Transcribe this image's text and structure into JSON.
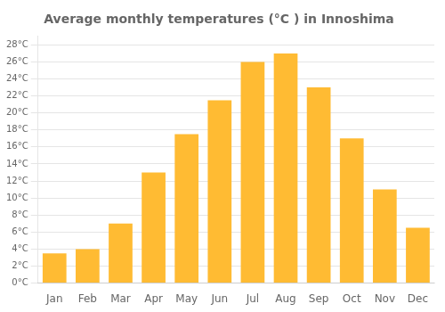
{
  "chart_data": {
    "type": "bar",
    "title": "Average monthly temperatures (°C ) in Innoshima",
    "categories": [
      "Jan",
      "Feb",
      "Mar",
      "Apr",
      "May",
      "Jun",
      "Jul",
      "Aug",
      "Sep",
      "Oct",
      "Nov",
      "Dec"
    ],
    "values": [
      3.5,
      4.0,
      7.0,
      13.0,
      17.5,
      21.5,
      26.0,
      27.0,
      23.0,
      17.0,
      11.0,
      6.5
    ],
    "color": "#FFBB33",
    "ylim": [
      0,
      29
    ],
    "yticks": [
      {
        "value": 0,
        "label": "0°C"
      },
      {
        "value": 2,
        "label": "2°C"
      },
      {
        "value": 4,
        "label": "4°C"
      },
      {
        "value": 6,
        "label": "6°C"
      },
      {
        "value": 8,
        "label": "8°C"
      },
      {
        "value": 10,
        "label": "10°C"
      },
      {
        "value": 12,
        "label": "12°C"
      },
      {
        "value": 14,
        "label": "14°C"
      },
      {
        "value": 16,
        "label": "16°C"
      },
      {
        "value": 18,
        "label": "18°C"
      },
      {
        "value": 20,
        "label": "20°C"
      },
      {
        "value": 22,
        "label": "22°C"
      },
      {
        "value": 24,
        "label": "24°C"
      },
      {
        "value": 26,
        "label": "26°C"
      },
      {
        "value": 28,
        "label": "28°C"
      }
    ],
    "grid": true
  }
}
